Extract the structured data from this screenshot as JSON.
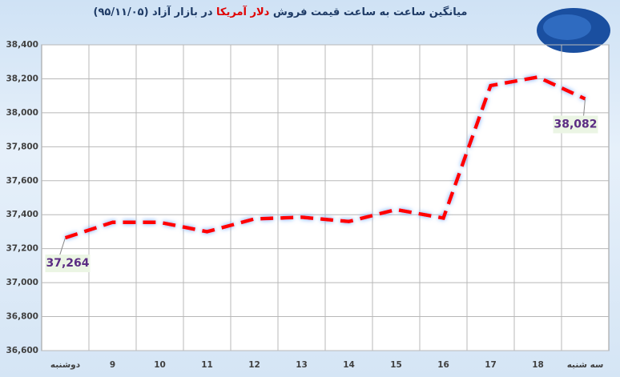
{
  "chart_data": {
    "type": "line",
    "title_parts": [
      "میانگین ساعت به ساعت قیمت فروش",
      "دلار آمریکا",
      "در بازار آزاد (۹۵/۱۱/۰۵)"
    ],
    "categories": [
      "دوشنبه",
      "9",
      "10",
      "11",
      "12",
      "13",
      "14",
      "15",
      "16",
      "17",
      "18",
      "سه شنبه"
    ],
    "values": [
      37264,
      37355,
      37355,
      37300,
      37375,
      37385,
      37360,
      37430,
      37380,
      38160,
      38210,
      38082
    ],
    "value_labels": [
      "37,264",
      null,
      null,
      null,
      null,
      null,
      null,
      null,
      null,
      null,
      null,
      "38,082"
    ],
    "color": "#ff0000",
    "ylim": [
      36600,
      38400
    ],
    "yticks": [
      {
        "value": 36600,
        "label": "36,600"
      },
      {
        "value": 36800,
        "label": "36,800"
      },
      {
        "value": 37000,
        "label": "37,000"
      },
      {
        "value": 37200,
        "label": "37,200"
      },
      {
        "value": 37400,
        "label": "37,400"
      },
      {
        "value": 37600,
        "label": "37,600"
      },
      {
        "value": 37800,
        "label": "37,800"
      },
      {
        "value": 38000,
        "label": "38,000"
      },
      {
        "value": 38200,
        "label": "38,200"
      },
      {
        "value": 38400,
        "label": "38,400"
      }
    ],
    "grid": true
  }
}
